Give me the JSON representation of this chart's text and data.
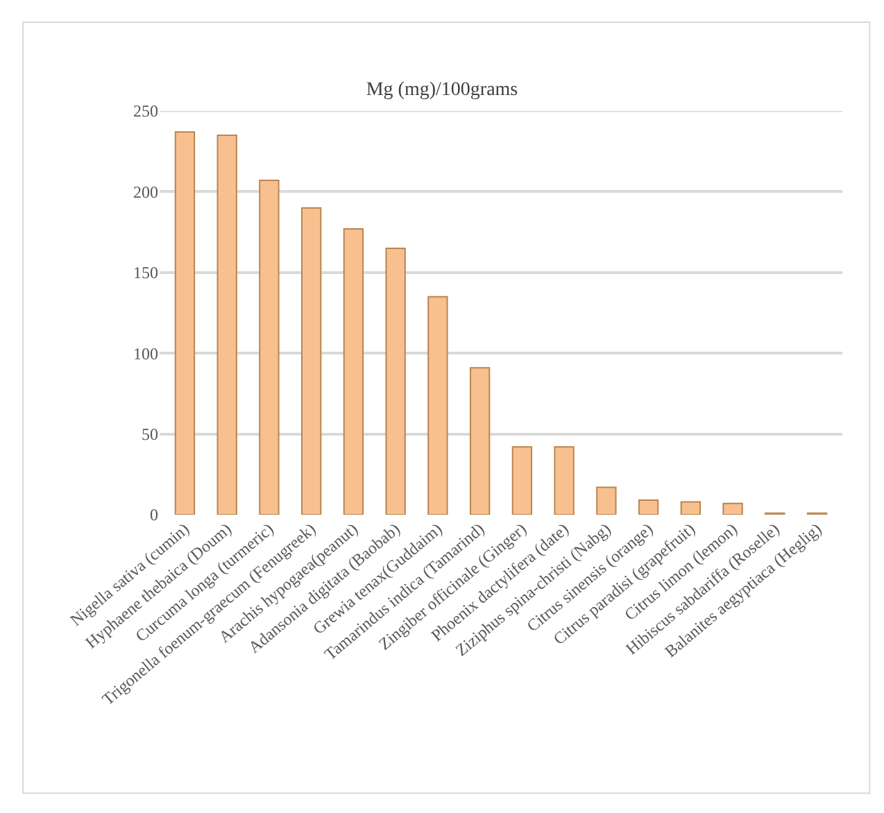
{
  "chart_data": {
    "type": "bar",
    "title": "Mg (mg)/100grams",
    "categories": [
      "Nigella sativa (cumin)",
      "Hyphaene thebaica (Doum)",
      "Curcuma longa (turmeric)",
      "Trigonella foenum-graecum (Fenugreek)",
      "Arachis hypogaea(peanut)",
      "Adansonia digitata (Baobab)",
      "Grewia tenax(Guddaim)",
      "Tamarindus indica (Tamarind)",
      "Zingiber officinale (Ginger)",
      "Phoenix dactylifera (date)",
      "Ziziphus spina-christi (Nabg)",
      "Citrus sinensis (orange)",
      "Citrus paradisi (grapefruit)",
      "Citrus limon (lemon)",
      "Hibiscus sabdariffa (Roselle)",
      "Balanites aegyptiaca (Heglig)"
    ],
    "values": [
      237,
      235,
      207,
      190,
      177,
      165,
      135,
      91,
      42,
      42,
      17,
      9,
      8,
      7,
      1,
      1
    ],
    "color": "#f9c08f",
    "ylim": [
      0,
      250
    ],
    "yticks": [
      0,
      50,
      100,
      150,
      200,
      250
    ],
    "grid": "y"
  }
}
